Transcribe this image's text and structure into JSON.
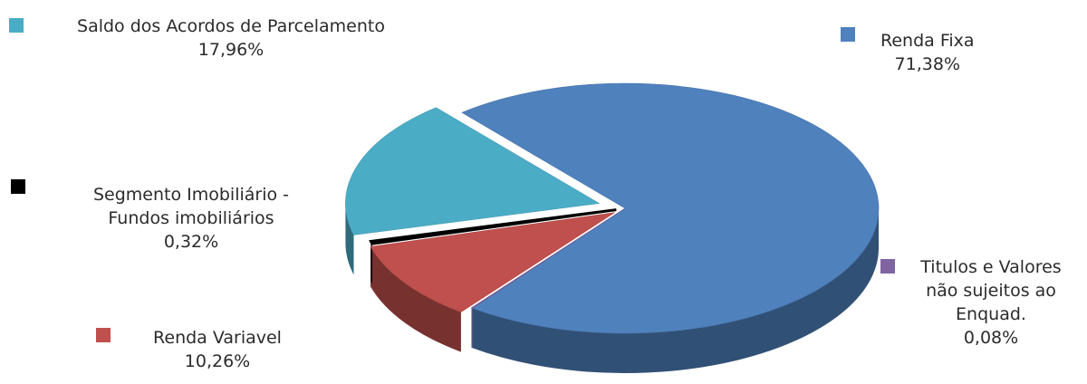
{
  "chart_data": {
    "type": "pie",
    "style": "3d-exploded",
    "slices": [
      {
        "name": "Renda Fixa",
        "name_lines": [
          "Renda Fixa"
        ],
        "value": 71.38,
        "label": "71,38%",
        "color": "#4f81bd"
      },
      {
        "name": "Titulos e Valores não sujeitos ao Enquad.",
        "name_lines": [
          "Titulos e Valores",
          "não sujeitos ao",
          "Enquad."
        ],
        "value": 0.08,
        "label": "0,08%",
        "color": "#8064a2"
      },
      {
        "name": "Renda Variavel",
        "name_lines": [
          "Renda Variavel"
        ],
        "value": 10.26,
        "label": "10,26%",
        "color": "#c0504d"
      },
      {
        "name": "Segmento Imobiliário - Fundos imobiliários",
        "name_lines": [
          "Segmento Imobiliário -",
          "Fundos imobiliários"
        ],
        "value": 0.32,
        "label": "0,32%",
        "color": "#000000"
      },
      {
        "name": "Saldo dos Acordos de Parcelamento",
        "name_lines": [
          "Saldo dos Acordos de Parcelamento"
        ],
        "value": 17.96,
        "label": "17,96%",
        "color": "#4bacc6"
      }
    ]
  }
}
